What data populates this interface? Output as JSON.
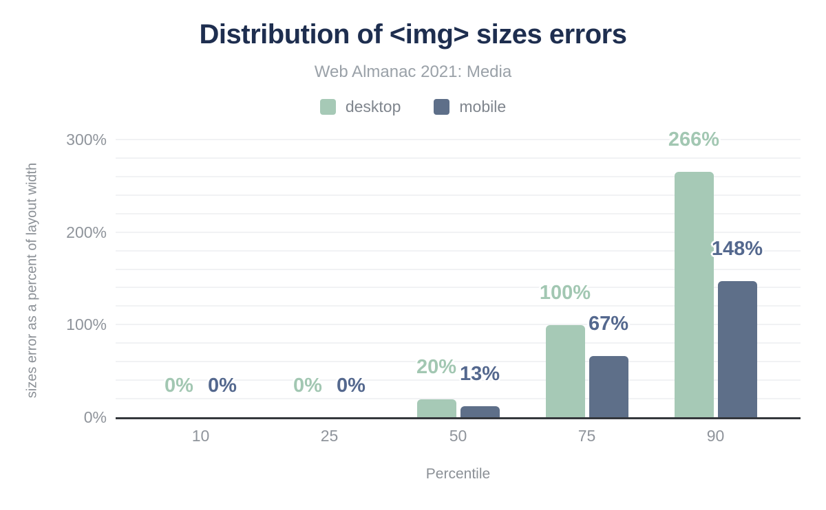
{
  "header": {
    "title": "Distribution of <img> sizes errors",
    "subtitle": "Web Almanac 2021: Media"
  },
  "colors": {
    "title_text": "#1e2e4f",
    "subtitle_text": "#9aa1a8",
    "tick_text": "#8f949b",
    "axis_line": "#34373c",
    "gridline": "#f1f2f4",
    "background": "#ffffff"
  },
  "chart_data": {
    "type": "bar",
    "title": "Distribution of <img> sizes errors",
    "subtitle": "Web Almanac 2021: Media",
    "xlabel": "Percentile",
    "ylabel": "sizes error as a percent of layout width",
    "categories": [
      "10",
      "25",
      "50",
      "75",
      "90"
    ],
    "series": [
      {
        "name": "desktop",
        "color": "#a6c9b6",
        "label_color": "#a2c7b2",
        "values": [
          0,
          0,
          20,
          100,
          266
        ],
        "value_labels": [
          "0%",
          "0%",
          "20%",
          "100%",
          "266%"
        ]
      },
      {
        "name": "mobile",
        "color": "#5e6f89",
        "label_color": "#54688e",
        "values": [
          0,
          0,
          13,
          67,
          148
        ],
        "value_labels": [
          "0%",
          "0%",
          "13%",
          "67%",
          "148%"
        ]
      }
    ],
    "ylim": [
      0,
      300
    ],
    "ytick_step_labeled": 100,
    "ytick_labels": [
      "0%",
      "100%",
      "200%",
      "300%"
    ],
    "gridline_step": 20,
    "grid": "horizontal minor gridlines every 20%, light gray",
    "legend_position": "top-center",
    "bar_corner": "rounded-top",
    "value_labels_position": "above bars, colored like series, white halo"
  }
}
